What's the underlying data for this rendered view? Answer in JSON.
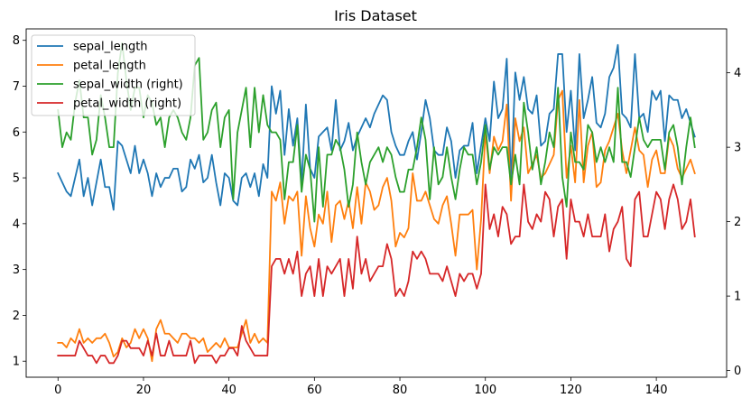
{
  "chart_data": {
    "type": "line",
    "title": "Iris Dataset",
    "xlabel": "",
    "ylabel": "",
    "xlim": [
      -7.45,
      156.45
    ],
    "ylim": [
      0.65,
      8.25
    ],
    "y2lim": [
      -0.09,
      4.59
    ],
    "xticks": [
      0,
      20,
      40,
      60,
      80,
      100,
      120,
      140
    ],
    "yticks": [
      1,
      2,
      3,
      4,
      5,
      6,
      7,
      8
    ],
    "y2ticks": [
      0,
      1,
      2,
      3,
      4
    ],
    "grid": false,
    "legend_position": "top-left",
    "x": [
      0,
      1,
      2,
      3,
      4,
      5,
      6,
      7,
      8,
      9,
      10,
      11,
      12,
      13,
      14,
      15,
      16,
      17,
      18,
      19,
      20,
      21,
      22,
      23,
      24,
      25,
      26,
      27,
      28,
      29,
      30,
      31,
      32,
      33,
      34,
      35,
      36,
      37,
      38,
      39,
      40,
      41,
      42,
      43,
      44,
      45,
      46,
      47,
      48,
      49,
      50,
      51,
      52,
      53,
      54,
      55,
      56,
      57,
      58,
      59,
      60,
      61,
      62,
      63,
      64,
      65,
      66,
      67,
      68,
      69,
      70,
      71,
      72,
      73,
      74,
      75,
      76,
      77,
      78,
      79,
      80,
      81,
      82,
      83,
      84,
      85,
      86,
      87,
      88,
      89,
      90,
      91,
      92,
      93,
      94,
      95,
      96,
      97,
      98,
      99,
      100,
      101,
      102,
      103,
      104,
      105,
      106,
      107,
      108,
      109,
      110,
      111,
      112,
      113,
      114,
      115,
      116,
      117,
      118,
      119,
      120,
      121,
      122,
      123,
      124,
      125,
      126,
      127,
      128,
      129,
      130,
      131,
      132,
      133,
      134,
      135,
      136,
      137,
      138,
      139,
      140,
      141,
      142,
      143,
      144,
      145,
      146,
      147,
      148,
      149
    ],
    "series": [
      {
        "name": "sepal_length",
        "axis": "left",
        "color": "#1f77b4",
        "values": [
          5.1,
          4.9,
          4.7,
          4.6,
          5.0,
          5.4,
          4.6,
          5.0,
          4.4,
          4.9,
          5.4,
          4.8,
          4.8,
          4.3,
          5.8,
          5.7,
          5.4,
          5.1,
          5.7,
          5.1,
          5.4,
          5.1,
          4.6,
          5.1,
          4.8,
          5.0,
          5.0,
          5.2,
          5.2,
          4.7,
          4.8,
          5.4,
          5.2,
          5.5,
          4.9,
          5.0,
          5.5,
          4.9,
          4.4,
          5.1,
          5.0,
          4.5,
          4.4,
          5.0,
          5.1,
          4.8,
          5.1,
          4.6,
          5.3,
          5.0,
          7.0,
          6.4,
          6.9,
          5.5,
          6.5,
          5.7,
          6.3,
          4.9,
          6.6,
          5.2,
          5.0,
          5.9,
          6.0,
          6.1,
          5.6,
          6.7,
          5.6,
          5.8,
          6.2,
          5.6,
          5.9,
          6.1,
          6.3,
          6.1,
          6.4,
          6.6,
          6.8,
          6.7,
          6.0,
          5.7,
          5.5,
          5.5,
          5.8,
          6.0,
          5.4,
          6.0,
          6.7,
          6.3,
          5.6,
          5.5,
          5.5,
          6.1,
          5.8,
          5.0,
          5.6,
          5.7,
          5.7,
          6.2,
          5.1,
          5.7,
          6.3,
          5.8,
          7.1,
          6.3,
          6.5,
          7.6,
          4.9,
          7.3,
          6.7,
          7.2,
          6.5,
          6.4,
          6.8,
          5.7,
          5.8,
          6.4,
          6.5,
          7.7,
          7.7,
          6.0,
          6.9,
          5.6,
          7.7,
          6.3,
          6.7,
          7.2,
          6.2,
          6.1,
          6.4,
          7.2,
          7.4,
          7.9,
          6.4,
          6.3,
          6.1,
          7.7,
          6.3,
          6.4,
          6.0,
          6.9,
          6.7,
          6.9,
          5.8,
          6.8,
          6.7,
          6.7,
          6.3,
          6.5,
          6.2,
          5.9
        ]
      },
      {
        "name": "petal_length",
        "axis": "left",
        "color": "#ff7f0e",
        "values": [
          1.4,
          1.4,
          1.3,
          1.5,
          1.4,
          1.7,
          1.4,
          1.5,
          1.4,
          1.5,
          1.5,
          1.6,
          1.4,
          1.1,
          1.2,
          1.5,
          1.3,
          1.4,
          1.7,
          1.5,
          1.7,
          1.5,
          1.0,
          1.7,
          1.9,
          1.6,
          1.6,
          1.5,
          1.4,
          1.6,
          1.6,
          1.5,
          1.5,
          1.4,
          1.5,
          1.2,
          1.3,
          1.4,
          1.3,
          1.5,
          1.3,
          1.3,
          1.3,
          1.6,
          1.9,
          1.4,
          1.6,
          1.4,
          1.5,
          1.4,
          4.7,
          4.5,
          4.9,
          4.0,
          4.6,
          4.5,
          4.7,
          3.3,
          4.6,
          3.9,
          3.5,
          4.2,
          4.0,
          4.7,
          3.6,
          4.4,
          4.5,
          4.1,
          4.5,
          3.9,
          4.8,
          4.0,
          4.9,
          4.7,
          4.3,
          4.4,
          4.8,
          5.0,
          4.5,
          3.5,
          3.8,
          3.7,
          3.9,
          5.1,
          4.5,
          4.5,
          4.7,
          4.4,
          4.1,
          4.0,
          4.4,
          4.6,
          4.0,
          3.3,
          4.2,
          4.2,
          4.2,
          4.3,
          3.0,
          4.1,
          6.0,
          5.1,
          5.9,
          5.6,
          5.8,
          6.6,
          4.5,
          6.3,
          5.8,
          6.1,
          5.1,
          5.3,
          5.5,
          5.0,
          5.1,
          5.3,
          5.5,
          6.7,
          6.9,
          5.0,
          5.7,
          4.9,
          6.7,
          4.9,
          5.7,
          6.0,
          4.8,
          4.9,
          5.6,
          5.8,
          6.1,
          6.4,
          5.6,
          5.1,
          5.6,
          6.1,
          5.6,
          5.5,
          4.8,
          5.4,
          5.6,
          5.1,
          5.1,
          5.9,
          5.7,
          5.2,
          5.0,
          5.2,
          5.4,
          5.1
        ]
      },
      {
        "name": "sepal_width (right)",
        "axis": "right",
        "color": "#2ca02c",
        "values": [
          3.5,
          3.0,
          3.2,
          3.1,
          3.6,
          3.9,
          3.4,
          3.4,
          2.9,
          3.1,
          3.7,
          3.4,
          3.0,
          3.0,
          4.0,
          4.4,
          3.9,
          3.5,
          3.8,
          3.8,
          3.4,
          3.7,
          3.6,
          3.3,
          3.4,
          3.0,
          3.4,
          3.5,
          3.4,
          3.2,
          3.1,
          3.4,
          4.1,
          4.2,
          3.1,
          3.2,
          3.5,
          3.6,
          3.0,
          3.4,
          3.5,
          2.3,
          3.2,
          3.5,
          3.8,
          3.0,
          3.8,
          3.2,
          3.7,
          3.3,
          3.2,
          3.2,
          3.1,
          2.3,
          2.8,
          2.8,
          3.3,
          2.4,
          2.9,
          2.7,
          2.0,
          3.0,
          2.2,
          2.9,
          2.9,
          3.1,
          3.0,
          2.7,
          2.2,
          2.5,
          3.2,
          2.8,
          2.5,
          2.8,
          2.9,
          3.0,
          2.8,
          3.0,
          2.9,
          2.6,
          2.4,
          2.4,
          2.7,
          2.7,
          3.0,
          3.4,
          3.1,
          2.3,
          3.0,
          2.5,
          2.6,
          3.0,
          2.6,
          2.3,
          2.7,
          3.0,
          2.9,
          2.9,
          2.5,
          2.8,
          3.3,
          2.7,
          3.0,
          2.9,
          3.0,
          3.0,
          2.5,
          2.9,
          2.5,
          3.6,
          3.2,
          2.7,
          3.0,
          2.5,
          2.8,
          3.2,
          3.0,
          3.8,
          2.6,
          2.2,
          3.2,
          2.8,
          2.8,
          2.7,
          3.3,
          3.2,
          2.8,
          3.0,
          2.8,
          3.0,
          2.8,
          3.8,
          2.8,
          2.8,
          2.6,
          3.0,
          3.4,
          3.1,
          3.0,
          3.1,
          3.1,
          3.1,
          2.7,
          3.2,
          3.3,
          3.0,
          2.5,
          3.0,
          3.4,
          3.0
        ]
      },
      {
        "name": "petal_width (right)",
        "axis": "right",
        "color": "#d62728",
        "values": [
          0.2,
          0.2,
          0.2,
          0.2,
          0.2,
          0.4,
          0.3,
          0.2,
          0.2,
          0.1,
          0.2,
          0.2,
          0.1,
          0.1,
          0.2,
          0.4,
          0.4,
          0.3,
          0.3,
          0.3,
          0.2,
          0.4,
          0.2,
          0.5,
          0.2,
          0.2,
          0.4,
          0.2,
          0.2,
          0.2,
          0.2,
          0.4,
          0.1,
          0.2,
          0.2,
          0.2,
          0.2,
          0.1,
          0.2,
          0.2,
          0.3,
          0.3,
          0.2,
          0.6,
          0.4,
          0.3,
          0.2,
          0.2,
          0.2,
          0.2,
          1.4,
          1.5,
          1.5,
          1.3,
          1.5,
          1.3,
          1.6,
          1.0,
          1.3,
          1.4,
          1.0,
          1.5,
          1.0,
          1.4,
          1.3,
          1.4,
          1.5,
          1.0,
          1.5,
          1.1,
          1.8,
          1.3,
          1.5,
          1.2,
          1.3,
          1.4,
          1.4,
          1.7,
          1.5,
          1.0,
          1.1,
          1.0,
          1.2,
          1.6,
          1.5,
          1.6,
          1.5,
          1.3,
          1.3,
          1.3,
          1.2,
          1.4,
          1.2,
          1.0,
          1.3,
          1.2,
          1.3,
          1.3,
          1.1,
          1.3,
          2.5,
          1.9,
          2.1,
          1.8,
          2.2,
          2.1,
          1.7,
          1.8,
          1.8,
          2.5,
          2.0,
          1.9,
          2.1,
          2.0,
          2.4,
          2.3,
          1.8,
          2.2,
          2.3,
          1.5,
          2.3,
          2.0,
          2.0,
          1.8,
          2.1,
          1.8,
          1.8,
          1.8,
          2.1,
          1.6,
          1.9,
          2.0,
          2.2,
          1.5,
          1.4,
          2.3,
          2.4,
          1.8,
          1.8,
          2.1,
          2.4,
          2.3,
          1.9,
          2.3,
          2.5,
          2.3,
          1.9,
          2.0,
          2.3,
          1.8
        ]
      }
    ]
  }
}
